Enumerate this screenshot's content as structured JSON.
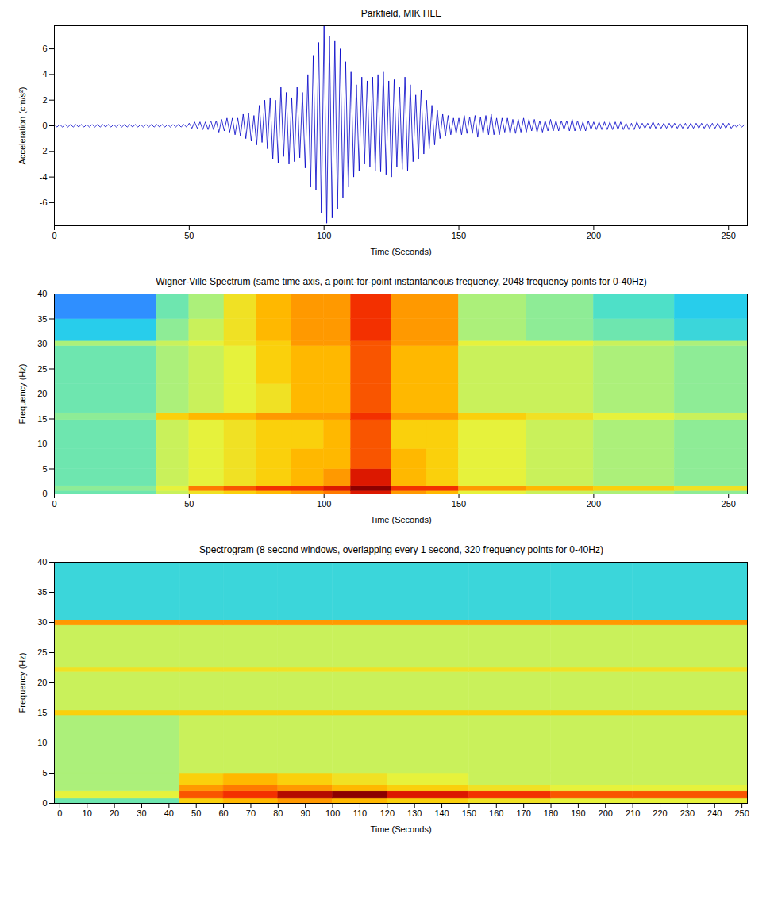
{
  "chart_data": [
    {
      "type": "line",
      "title": "Parkfield, MIK HLE",
      "x_label": "Time (Seconds)",
      "y_label": "Acceleration (cm/s²)",
      "color": "#0000c8",
      "xlim": [
        0,
        257
      ],
      "ylim": [
        -7.8,
        7.8
      ],
      "xticks": [
        0,
        50,
        100,
        150,
        200,
        250
      ],
      "yticks": [
        -6,
        -4,
        -2,
        0,
        2,
        4,
        6
      ],
      "x": [
        0,
        1,
        2,
        3,
        4,
        5,
        6,
        7,
        8,
        9,
        10,
        11,
        12,
        13,
        14,
        15,
        16,
        17,
        18,
        19,
        20,
        21,
        22,
        23,
        24,
        25,
        26,
        27,
        28,
        29,
        30,
        31,
        32,
        33,
        34,
        35,
        36,
        37,
        38,
        39,
        40,
        41,
        42,
        43,
        44,
        45,
        46,
        47,
        48,
        49,
        50,
        51,
        52,
        53,
        54,
        55,
        56,
        57,
        58,
        59,
        60,
        61,
        62,
        63,
        64,
        65,
        66,
        67,
        68,
        69,
        70,
        71,
        72,
        73,
        74,
        75,
        76,
        77,
        78,
        79,
        80,
        81,
        82,
        83,
        84,
        85,
        86,
        87,
        88,
        89,
        90,
        91,
        92,
        93,
        94,
        95,
        96,
        97,
        98,
        99,
        100,
        101,
        102,
        103,
        104,
        105,
        106,
        107,
        108,
        109,
        110,
        111,
        112,
        113,
        114,
        115,
        116,
        117,
        118,
        119,
        120,
        121,
        122,
        123,
        124,
        125,
        126,
        127,
        128,
        129,
        130,
        131,
        132,
        133,
        134,
        135,
        136,
        137,
        138,
        139,
        140,
        141,
        142,
        143,
        144,
        145,
        146,
        147,
        148,
        149,
        150,
        151,
        152,
        153,
        154,
        155,
        156,
        157,
        158,
        159,
        160,
        161,
        162,
        163,
        164,
        165,
        166,
        167,
        168,
        169,
        170,
        171,
        172,
        173,
        174,
        175,
        176,
        177,
        178,
        179,
        180,
        181,
        182,
        183,
        184,
        185,
        186,
        187,
        188,
        189,
        190,
        191,
        192,
        193,
        194,
        195,
        196,
        197,
        198,
        199,
        200,
        201,
        202,
        203,
        204,
        205,
        206,
        207,
        208,
        209,
        210,
        211,
        212,
        213,
        214,
        215,
        216,
        217,
        218,
        219,
        220,
        221,
        222,
        223,
        224,
        225,
        226,
        227,
        228,
        229,
        230,
        231,
        232,
        233,
        234,
        235,
        236,
        237,
        238,
        239,
        240,
        241,
        242,
        243,
        244,
        245,
        246,
        247,
        248,
        249,
        250,
        251,
        252,
        253,
        254,
        255,
        256
      ],
      "values": [
        0.1,
        -0.1,
        0.1,
        -0.1,
        0.1,
        -0.1,
        0.1,
        -0.1,
        0.1,
        -0.1,
        0.1,
        -0.1,
        0.1,
        -0.1,
        0.1,
        -0.1,
        0.1,
        -0.1,
        0.1,
        -0.1,
        0.1,
        -0.1,
        0.1,
        -0.1,
        0.1,
        -0.1,
        0.1,
        -0.1,
        0.1,
        -0.1,
        0.1,
        -0.1,
        0.1,
        -0.1,
        0.1,
        -0.1,
        0.1,
        -0.1,
        0.1,
        -0.1,
        0.1,
        -0.1,
        0.1,
        -0.1,
        0.1,
        -0.1,
        0.1,
        -0.1,
        0.1,
        -0.1,
        0.2,
        -0.2,
        0.3,
        -0.2,
        0.3,
        -0.3,
        0.3,
        -0.3,
        0.4,
        -0.3,
        0.4,
        -0.5,
        0.5,
        -0.4,
        0.6,
        -0.5,
        0.6,
        -0.7,
        0.6,
        -0.8,
        0.9,
        -1.0,
        1.0,
        -1.2,
        0.8,
        -1.5,
        1.6,
        -1.3,
        2.0,
        -1.8,
        2.2,
        -2.6,
        2.0,
        -2.9,
        3.0,
        -2.4,
        2.6,
        -3.0,
        2.2,
        -2.8,
        3.0,
        -2.5,
        2.6,
        -3.3,
        4.0,
        -4.8,
        5.5,
        -5.0,
        6.5,
        -6.8,
        7.8,
        -7.6,
        7.0,
        -7.2,
        6.6,
        -6.5,
        6.0,
        -5.6,
        5.0,
        -4.8,
        4.2,
        -4.0,
        3.2,
        -3.5,
        3.8,
        -3.0,
        3.5,
        -3.2,
        3.8,
        -3.5,
        4.0,
        -3.6,
        4.2,
        -3.8,
        3.5,
        -4.0,
        3.6,
        -3.2,
        3.0,
        -3.4,
        3.8,
        -3.5,
        3.2,
        -2.8,
        2.4,
        -2.6,
        2.8,
        -2.2,
        2.0,
        -1.8,
        1.6,
        -1.5,
        1.2,
        -1.0,
        0.9,
        -0.8,
        0.8,
        -0.7,
        0.6,
        -0.6,
        0.6,
        -0.7,
        0.8,
        -0.6,
        0.7,
        -0.6,
        0.8,
        -0.9,
        0.7,
        -0.6,
        0.8,
        -0.7,
        0.9,
        -0.7,
        0.6,
        -0.7,
        0.6,
        -0.5,
        0.6,
        -0.6,
        0.5,
        -0.6,
        0.5,
        -0.5,
        0.6,
        -0.5,
        0.5,
        -0.4,
        0.5,
        -0.5,
        0.4,
        -0.5,
        0.4,
        -0.4,
        0.5,
        -0.4,
        0.4,
        -0.4,
        0.4,
        -0.3,
        0.4,
        -0.4,
        0.5,
        -0.4,
        0.4,
        -0.4,
        0.3,
        -0.4,
        0.4,
        -0.3,
        0.3,
        -0.3,
        0.3,
        -0.3,
        0.3,
        -0.3,
        0.3,
        -0.3,
        0.3,
        -0.3,
        0.3,
        -0.3,
        0.2,
        -0.3,
        0.2,
        -0.3,
        0.3,
        -0.2,
        0.2,
        -0.2,
        0.2,
        -0.2,
        0.3,
        -0.2,
        0.2,
        -0.2,
        0.2,
        -0.2,
        0.2,
        -0.2,
        0.2,
        -0.2,
        0.2,
        -0.2,
        0.2,
        -0.2,
        0.2,
        -0.2,
        0.2,
        -0.2,
        0.2,
        -0.2,
        0.2,
        -0.2,
        0.2,
        -0.2,
        0.2,
        -0.2,
        0.2,
        -0.2,
        0.2,
        -0.2,
        0.1,
        -0.1,
        0.1,
        -0.1,
        0.1
      ]
    },
    {
      "type": "heatmap",
      "title": "Wigner-Ville Spectrum (same time axis, a point-for-point instantaneous frequency, 2048 frequency points for 0-40Hz)",
      "x_label": "Time (Seconds)",
      "y_label": "Frequency (Hz)",
      "xlim": [
        0,
        257
      ],
      "ylim": [
        0,
        40
      ],
      "xticks": [
        0,
        50,
        100,
        150,
        200,
        250
      ],
      "yticks": [
        0,
        5,
        10,
        15,
        20,
        25,
        30,
        35,
        40
      ],
      "x_edges": [
        0,
        38,
        50,
        63,
        75,
        88,
        100,
        110,
        125,
        138,
        150,
        175,
        200,
        230,
        257
      ],
      "y_edges": [
        0,
        0.6,
        1.6,
        5,
        9,
        14.8,
        16.2,
        22,
        29.6,
        30.6,
        35,
        40
      ],
      "cells": [
        [
          3,
          4.5,
          5.5,
          6,
          6.5,
          7,
          7.5,
          9,
          7,
          6.5,
          5,
          4.5,
          4,
          3.5
        ],
        [
          3.5,
          5,
          7.5,
          8,
          8.5,
          8.5,
          9,
          10,
          8.5,
          8.5,
          7,
          6.5,
          6,
          5.5
        ],
        [
          3,
          4.5,
          5,
          5.5,
          6,
          6.5,
          7,
          9,
          6.5,
          6,
          5,
          4.5,
          4,
          3.5
        ],
        [
          3,
          4.5,
          5,
          5.5,
          6,
          6.5,
          6.5,
          8,
          6.5,
          6,
          5,
          4.5,
          4,
          3.5
        ],
        [
          3,
          4.5,
          5,
          5.5,
          6,
          6,
          6.5,
          8,
          6,
          6,
          5,
          4.5,
          4,
          3.5
        ],
        [
          3.5,
          6,
          6.5,
          6.5,
          7,
          7,
          7,
          8.5,
          7,
          7,
          6,
          5.5,
          5,
          4.5
        ],
        [
          3,
          4,
          4.5,
          5,
          5.5,
          6.5,
          6.5,
          8,
          6.5,
          6.5,
          4.5,
          4.5,
          4,
          3.5
        ],
        [
          3,
          4,
          4.5,
          5,
          6,
          6.5,
          6.5,
          8,
          6.5,
          6.5,
          4.5,
          4.5,
          4,
          3.5
        ],
        [
          4,
          4.5,
          5,
          5.5,
          6,
          7,
          7,
          8,
          7,
          7,
          5,
          5,
          4.5,
          4
        ],
        [
          1.5,
          3.5,
          4.5,
          5.5,
          6.5,
          7,
          7,
          8.5,
          7,
          7,
          4,
          3.5,
          3,
          2
        ],
        [
          0,
          3,
          4,
          5.5,
          6.5,
          7,
          7,
          8.5,
          7,
          7,
          4,
          3.5,
          2.5,
          1.5
        ]
      ]
    },
    {
      "type": "heatmap",
      "title": "Spectrogram (8 second windows, overlapping every 1 second, 320 frequency points for 0-40Hz)",
      "x_label": "Time (Seconds)",
      "y_label": "Frequency (Hz)",
      "xlim": [
        -2,
        252
      ],
      "ylim": [
        0,
        40
      ],
      "xticks": [
        0,
        10,
        20,
        30,
        40,
        50,
        60,
        70,
        80,
        90,
        100,
        110,
        120,
        130,
        140,
        150,
        160,
        170,
        180,
        190,
        200,
        210,
        220,
        230,
        240,
        250
      ],
      "yticks": [
        0,
        5,
        10,
        15,
        20,
        25,
        30,
        35,
        40
      ],
      "x_edges": [
        -2,
        44,
        60,
        80,
        100,
        120,
        150,
        180,
        210,
        252
      ],
      "y_edges": [
        0,
        0.8,
        2,
        3,
        5,
        14.6,
        15.4,
        21.8,
        22.5,
        29.5,
        30.3,
        40
      ],
      "cells": [
        [
          3,
          6,
          6.5,
          7,
          6.5,
          6,
          5.5,
          5,
          5
        ],
        [
          5,
          8,
          8.5,
          9.5,
          10,
          9,
          8.5,
          8,
          8
        ],
        [
          4,
          7,
          7.5,
          7,
          6.5,
          6,
          5.5,
          5,
          5
        ],
        [
          4,
          6,
          6.5,
          6,
          5.5,
          5,
          4.5,
          4.5,
          4.5
        ],
        [
          4,
          4.5,
          4.5,
          4.5,
          4.5,
          4.5,
          4.5,
          4.5,
          4.5
        ],
        [
          6,
          6,
          6,
          6,
          6,
          6,
          6,
          6,
          6
        ],
        [
          4.5,
          4.5,
          4.5,
          4.5,
          4.5,
          4.5,
          4.5,
          4.5,
          4.5
        ],
        [
          5.5,
          5.5,
          5.5,
          5.5,
          5.5,
          5.5,
          5.5,
          5.5,
          5.5
        ],
        [
          4.5,
          4.5,
          4.5,
          4.5,
          4.5,
          4.5,
          4.5,
          4.5,
          4.5
        ],
        [
          7,
          7,
          7,
          7,
          7,
          7,
          7,
          7,
          7
        ],
        [
          2,
          2,
          2,
          2,
          2,
          2,
          2,
          2,
          2
        ]
      ]
    }
  ]
}
